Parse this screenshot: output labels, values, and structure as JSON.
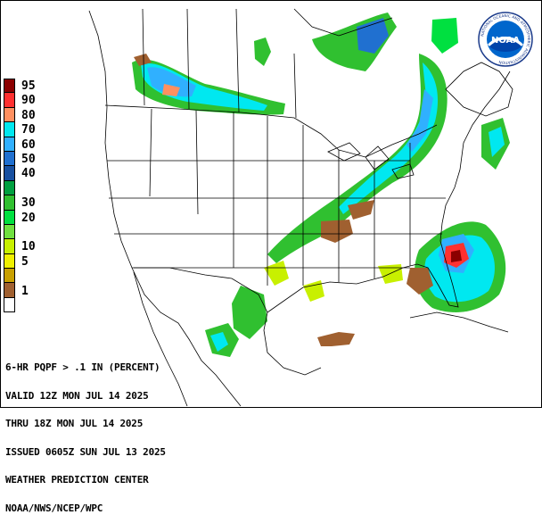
{
  "legend": {
    "levels": [
      {
        "label": "95",
        "color": "#8b0000"
      },
      {
        "label": "90",
        "color": "#ff3030"
      },
      {
        "label": "80",
        "color": "#ff9060"
      },
      {
        "label": "70",
        "color": "#00e8f0"
      },
      {
        "label": "60",
        "color": "#30b0ff"
      },
      {
        "label": "50",
        "color": "#2070d0"
      },
      {
        "label": "40",
        "color": "#1850a0"
      },
      {
        "label": "",
        "color": "#00a040"
      },
      {
        "label": "30",
        "color": "#30c030"
      },
      {
        "label": "20",
        "color": "#00e040"
      },
      {
        "label": "",
        "color": "#70e040"
      },
      {
        "label": "10",
        "color": "#c8f000"
      },
      {
        "label": "5",
        "color": "#f0f000"
      },
      {
        "label": "",
        "color": "#c8a000"
      },
      {
        "label": "1",
        "color": "#a06030"
      },
      {
        "label": "",
        "color": "#ffffff"
      }
    ]
  },
  "info_lines": [
    "6-HR PQPF > .1 IN (PERCENT)",
    "VALID 12Z MON JUL 14 2025",
    "THRU 18Z MON JUL 14 2025",
    "ISSUED 0605Z SUN JUL 13 2025",
    "WEATHER PREDICTION CENTER",
    "NOAA/NWS/NCEP/WPC"
  ],
  "logo": {
    "text": "NOAA",
    "ring_text": "NATIONAL OCEANIC AND ATMOSPHERIC ADMINISTRATION",
    "sub_text": "U.S. DEPARTMENT OF COMMERCE"
  }
}
